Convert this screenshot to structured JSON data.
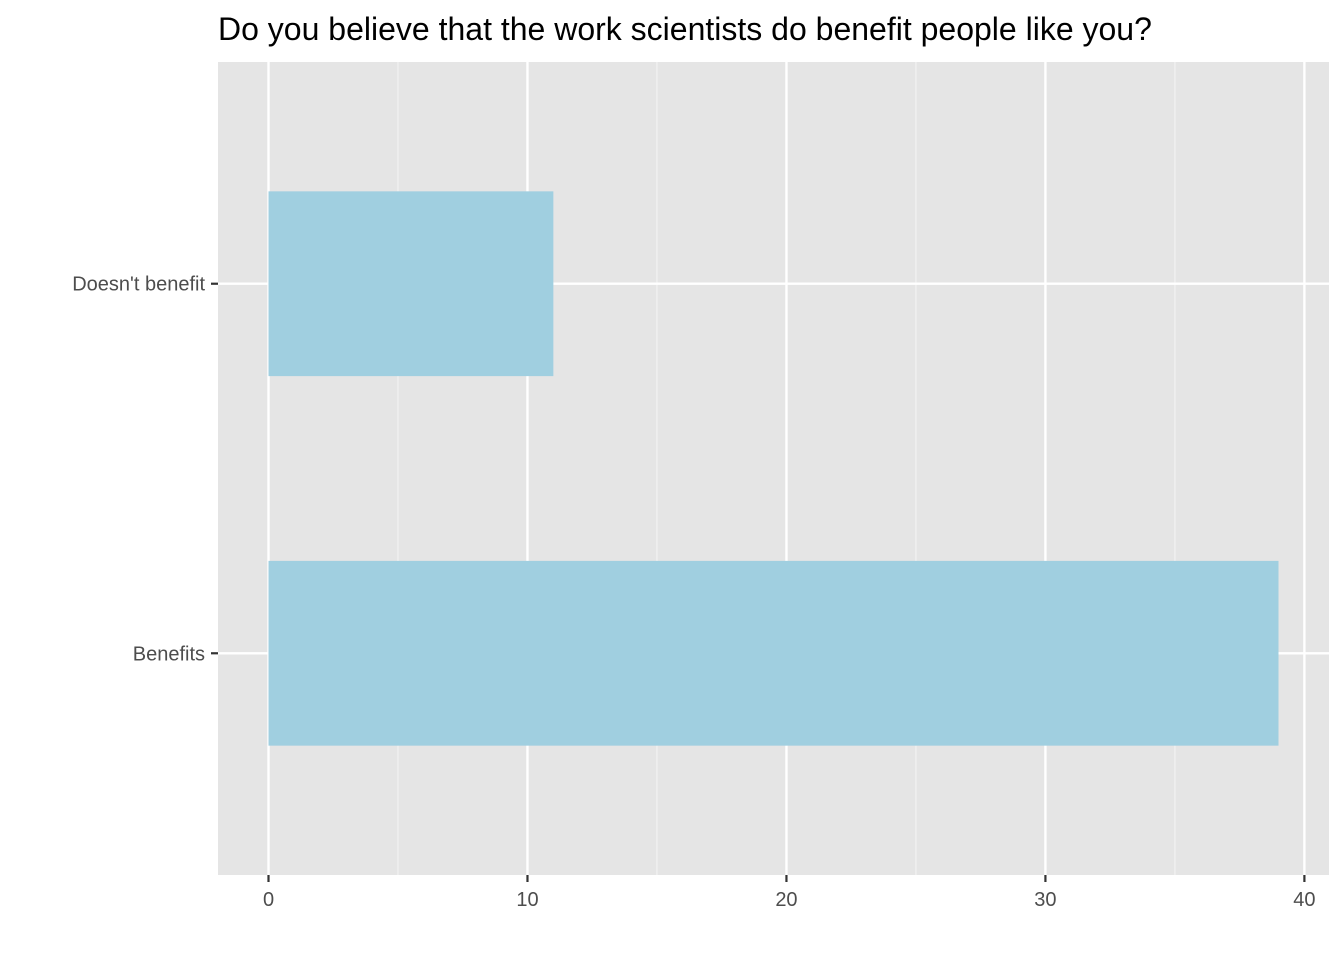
{
  "chart_data": {
    "type": "bar",
    "orientation": "horizontal",
    "title": "Do you believe that the work scientists do benefit people like you?",
    "xlabel": "",
    "ylabel": "",
    "categories": [
      "Doesn't benefit",
      "Benefits"
    ],
    "values": [
      11,
      39
    ],
    "xlim": [
      -1.95,
      40.95
    ],
    "x_ticks": [
      0,
      10,
      20,
      30,
      40
    ],
    "x_tick_labels": [
      "0",
      "10",
      "20",
      "30",
      "40"
    ],
    "grid": true,
    "legend": "none",
    "colors": {
      "bar": "#a0cfe0",
      "panel": "#e5e5e5",
      "grid_major": "#ffffff",
      "grid_minor": "#f2f2f2",
      "tick_text": "#4d4d4d",
      "title_text": "#000000"
    }
  }
}
